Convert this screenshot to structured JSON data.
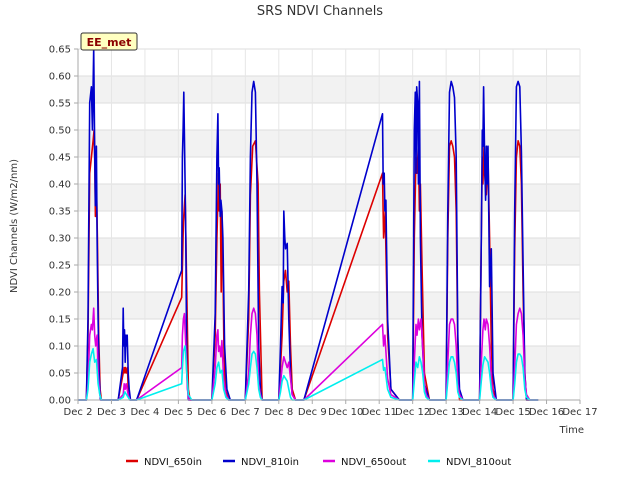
{
  "chart_data": {
    "type": "line",
    "title": "SRS NDVI Channels",
    "xlabel": "Time",
    "ylabel": "NDVI Channels (W/m2/nm)",
    "badge": "EE_met",
    "grid": true,
    "legend_position": "bottom",
    "xlim": [
      2,
      17
    ],
    "ylim": [
      0,
      0.65
    ],
    "x_ticks": [
      2,
      3,
      4,
      5,
      6,
      7,
      8,
      9,
      10,
      11,
      12,
      13,
      14,
      15,
      16,
      17
    ],
    "x_tick_labels": [
      "Dec 2",
      "Dec 3",
      "Dec 4",
      "Dec 5",
      "Dec 6",
      "Dec 7",
      "Dec 8",
      "Dec 9",
      "Dec 10",
      "Dec 11",
      "Dec 12",
      "Dec 13",
      "Dec 14",
      "Dec 15",
      "Dec 16",
      "Dec 17"
    ],
    "y_ticks": [
      0,
      0.05,
      0.1,
      0.15,
      0.2,
      0.25,
      0.3,
      0.35,
      0.4,
      0.45,
      0.5,
      0.55,
      0.6,
      0.65
    ],
    "y_tick_labels": [
      "0.00",
      "0.05",
      "0.10",
      "0.15",
      "0.20",
      "0.25",
      "0.30",
      "0.35",
      "0.40",
      "0.45",
      "0.50",
      "0.55",
      "0.60",
      "0.65"
    ],
    "series": [
      {
        "name": "NDVI_650in",
        "color": "#dd0000",
        "x": [
          2.0,
          2.25,
          2.3,
          2.35,
          2.4,
          2.45,
          2.48,
          2.5,
          2.52,
          2.55,
          2.58,
          2.62,
          2.66,
          2.7,
          2.75,
          2.8,
          3.0,
          3.2,
          3.35,
          3.38,
          3.4,
          3.42,
          3.45,
          3.48,
          3.5,
          3.55,
          3.6,
          3.7,
          3.75,
          5.1,
          5.15,
          5.2,
          5.25,
          5.3,
          5.35,
          5.4,
          5.5,
          6.0,
          6.1,
          6.15,
          6.2,
          6.22,
          6.25,
          6.28,
          6.3,
          6.33,
          6.36,
          6.4,
          6.5,
          7.0,
          7.1,
          7.15,
          7.22,
          7.3,
          7.38,
          7.42,
          7.5,
          8.0,
          8.1,
          8.15,
          8.2,
          8.25,
          8.3,
          8.35,
          8.4,
          8.5,
          8.75,
          11.1,
          11.13,
          11.18,
          11.2,
          11.25,
          11.35,
          11.6,
          12.0,
          12.05,
          12.1,
          12.13,
          12.17,
          12.2,
          12.23,
          12.28,
          12.35,
          12.5,
          13.0,
          13.05,
          13.1,
          13.15,
          13.2,
          13.25,
          13.3,
          13.35,
          13.4,
          13.5,
          14.0,
          14.05,
          14.08,
          14.1,
          14.13,
          14.15,
          14.2,
          14.25,
          14.3,
          14.35,
          14.4,
          14.5,
          15.0,
          15.05,
          15.1,
          15.15,
          15.2,
          15.25,
          15.3,
          15.35,
          15.4,
          15.5,
          15.75
        ],
        "values": [
          0,
          0,
          0.12,
          0.42,
          0.45,
          0.48,
          0.5,
          0.45,
          0.34,
          0.4,
          0.3,
          0.12,
          0.02,
          0,
          0,
          0,
          0,
          0,
          0.05,
          0.06,
          0.05,
          0.06,
          0.05,
          0.06,
          0.02,
          0,
          0,
          0,
          0,
          0.19,
          0.33,
          0.38,
          0.2,
          0.02,
          0,
          0,
          0,
          0,
          0.12,
          0.3,
          0.42,
          0.35,
          0.4,
          0.2,
          0.35,
          0.25,
          0.1,
          0.02,
          0,
          0,
          0.15,
          0.38,
          0.47,
          0.48,
          0.4,
          0.2,
          0,
          0,
          0.12,
          0.22,
          0.24,
          0.2,
          0.22,
          0.1,
          0.02,
          0,
          0,
          0.42,
          0.3,
          0.35,
          0.28,
          0.12,
          0.02,
          0,
          0,
          0.3,
          0.45,
          0.42,
          0.47,
          0.35,
          0.4,
          0.25,
          0.05,
          0,
          0,
          0.3,
          0.47,
          0.48,
          0.47,
          0.45,
          0.35,
          0.1,
          0,
          0,
          0,
          0.3,
          0.45,
          0.4,
          0.47,
          0.42,
          0.38,
          0.45,
          0.3,
          0.1,
          0.02,
          0,
          0,
          0.28,
          0.45,
          0.48,
          0.47,
          0.4,
          0.2,
          0.05,
          0,
          0,
          0
        ]
      },
      {
        "name": "NDVI_810in",
        "color": "#0000cc",
        "x": [
          2.0,
          2.25,
          2.3,
          2.35,
          2.4,
          2.43,
          2.47,
          2.5,
          2.52,
          2.55,
          2.57,
          2.6,
          2.63,
          2.67,
          2.72,
          2.8,
          3.0,
          3.2,
          3.33,
          3.35,
          3.37,
          3.39,
          3.41,
          3.43,
          3.45,
          3.47,
          3.5,
          3.53,
          3.57,
          3.65,
          3.75,
          5.1,
          5.12,
          5.14,
          5.16,
          5.2,
          5.22,
          5.25,
          5.3,
          5.35,
          5.4,
          5.5,
          6.0,
          6.1,
          6.15,
          6.18,
          6.2,
          6.22,
          6.25,
          6.27,
          6.3,
          6.33,
          6.38,
          6.45,
          6.55,
          7.0,
          7.1,
          7.15,
          7.2,
          7.25,
          7.3,
          7.35,
          7.4,
          7.45,
          7.5,
          8.0,
          8.05,
          8.1,
          8.13,
          8.15,
          8.18,
          8.2,
          8.25,
          8.3,
          8.35,
          8.4,
          8.5,
          8.75,
          11.1,
          11.12,
          11.15,
          11.17,
          11.2,
          11.25,
          11.35,
          11.6,
          12.0,
          12.05,
          12.08,
          12.1,
          12.12,
          12.15,
          12.17,
          12.2,
          12.23,
          12.28,
          12.35,
          12.5,
          13.0,
          13.05,
          13.1,
          13.15,
          13.2,
          13.25,
          13.3,
          13.35,
          13.4,
          13.5,
          14.0,
          14.05,
          14.08,
          14.1,
          14.12,
          14.15,
          14.18,
          14.2,
          14.22,
          14.25,
          14.3,
          14.35,
          14.4,
          14.5,
          15.0,
          15.05,
          15.1,
          15.15,
          15.2,
          15.25,
          15.3,
          15.35,
          15.4,
          15.5,
          15.75
        ],
        "values": [
          0,
          0,
          0.15,
          0.55,
          0.58,
          0.5,
          0.65,
          0.46,
          0.36,
          0.47,
          0.3,
          0.15,
          0.05,
          0,
          0,
          0,
          0,
          0,
          0.06,
          0.17,
          0.1,
          0.13,
          0.07,
          0.12,
          0.1,
          0.12,
          0.05,
          0.02,
          0,
          0,
          0,
          0.24,
          0.45,
          0.5,
          0.57,
          0.4,
          0.3,
          0.05,
          0,
          0,
          0,
          0,
          0,
          0.16,
          0.45,
          0.53,
          0.4,
          0.43,
          0.34,
          0.37,
          0.35,
          0.3,
          0.1,
          0.02,
          0,
          0,
          0.2,
          0.45,
          0.57,
          0.59,
          0.57,
          0.4,
          0.1,
          0.02,
          0,
          0,
          0.1,
          0.21,
          0.18,
          0.35,
          0.3,
          0.28,
          0.29,
          0.15,
          0.05,
          0.01,
          0,
          0,
          0.53,
          0.4,
          0.42,
          0.35,
          0.37,
          0.15,
          0.02,
          0,
          0,
          0.5,
          0.57,
          0.42,
          0.58,
          0.55,
          0.4,
          0.59,
          0.3,
          0.12,
          0.03,
          0,
          0,
          0.35,
          0.57,
          0.59,
          0.58,
          0.56,
          0.45,
          0.12,
          0.02,
          0,
          0,
          0.3,
          0.5,
          0.47,
          0.58,
          0.45,
          0.37,
          0.47,
          0.4,
          0.47,
          0.21,
          0.28,
          0.05,
          0,
          0,
          0.35,
          0.58,
          0.59,
          0.58,
          0.46,
          0.25,
          0.05,
          0,
          0,
          0
        ]
      },
      {
        "name": "NDVI_650out",
        "color": "#dd00dd",
        "x": [
          2.0,
          2.25,
          2.3,
          2.35,
          2.4,
          2.43,
          2.47,
          2.5,
          2.53,
          2.57,
          2.6,
          2.65,
          2.7,
          2.8,
          3.0,
          3.2,
          3.35,
          3.38,
          3.41,
          3.44,
          3.47,
          3.5,
          3.55,
          3.65,
          3.75,
          5.1,
          5.12,
          5.15,
          5.18,
          5.22,
          5.27,
          5.32,
          5.4,
          5.5,
          6.0,
          6.1,
          6.15,
          6.18,
          6.2,
          6.23,
          6.27,
          6.3,
          6.35,
          6.42,
          6.5,
          7.0,
          7.1,
          7.15,
          7.2,
          7.25,
          7.3,
          7.35,
          7.4,
          7.45,
          7.5,
          8.0,
          8.05,
          8.1,
          8.15,
          8.2,
          8.25,
          8.3,
          8.35,
          8.4,
          8.5,
          8.75,
          11.1,
          11.13,
          11.17,
          11.2,
          11.25,
          11.35,
          11.6,
          12.0,
          12.05,
          12.1,
          12.13,
          12.17,
          12.2,
          12.25,
          12.3,
          12.35,
          12.4,
          12.5,
          13.0,
          13.05,
          13.1,
          13.15,
          13.2,
          13.25,
          13.3,
          13.35,
          13.4,
          13.5,
          14.0,
          14.05,
          14.1,
          14.13,
          14.17,
          14.2,
          14.25,
          14.3,
          14.35,
          14.4,
          14.5,
          15.0,
          15.05,
          15.1,
          15.15,
          15.2,
          15.25,
          15.3,
          15.35,
          15.4,
          15.5,
          15.75
        ],
        "values": [
          0,
          0,
          0.03,
          0.12,
          0.14,
          0.13,
          0.17,
          0.12,
          0.1,
          0.12,
          0.05,
          0.01,
          0,
          0,
          0,
          0,
          0.01,
          0.03,
          0.02,
          0.03,
          0.02,
          0.01,
          0,
          0,
          0,
          0.06,
          0.12,
          0.15,
          0.16,
          0.1,
          0.02,
          0,
          0,
          0,
          0,
          0.06,
          0.12,
          0.13,
          0.09,
          0.1,
          0.08,
          0.11,
          0.04,
          0.01,
          0,
          0,
          0.05,
          0.12,
          0.16,
          0.17,
          0.16,
          0.12,
          0.03,
          0.01,
          0,
          0,
          0.03,
          0.06,
          0.08,
          0.07,
          0.06,
          0.07,
          0.04,
          0.01,
          0,
          0,
          0.14,
          0.1,
          0.12,
          0.09,
          0.04,
          0.01,
          0,
          0,
          0.07,
          0.14,
          0.12,
          0.15,
          0.13,
          0.15,
          0.1,
          0.03,
          0.01,
          0,
          0,
          0.07,
          0.14,
          0.15,
          0.15,
          0.14,
          0.1,
          0.03,
          0.01,
          0,
          0,
          0.07,
          0.13,
          0.15,
          0.13,
          0.15,
          0.14,
          0.1,
          0.04,
          0.01,
          0,
          0,
          0.06,
          0.14,
          0.16,
          0.17,
          0.16,
          0.12,
          0.04,
          0.01,
          0,
          0
        ]
      },
      {
        "name": "NDVI_810out",
        "color": "#00eeee",
        "x": [
          2.0,
          2.25,
          2.3,
          2.35,
          2.4,
          2.45,
          2.5,
          2.55,
          2.6,
          2.65,
          2.7,
          2.8,
          3.0,
          3.2,
          3.35,
          3.4,
          3.45,
          3.5,
          3.55,
          3.65,
          3.75,
          5.1,
          5.12,
          5.15,
          5.2,
          5.25,
          5.3,
          5.4,
          5.5,
          6.0,
          6.1,
          6.15,
          6.2,
          6.25,
          6.3,
          6.35,
          6.42,
          6.5,
          7.0,
          7.1,
          7.15,
          7.2,
          7.25,
          7.3,
          7.35,
          7.4,
          7.45,
          7.5,
          8.0,
          8.05,
          8.1,
          8.15,
          8.2,
          8.25,
          8.3,
          8.35,
          8.4,
          8.5,
          8.75,
          11.1,
          11.13,
          11.17,
          11.2,
          11.25,
          11.35,
          11.6,
          12.0,
          12.05,
          12.1,
          12.15,
          12.2,
          12.25,
          12.3,
          12.35,
          12.4,
          12.5,
          13.0,
          13.05,
          13.1,
          13.15,
          13.2,
          13.25,
          13.3,
          13.35,
          13.4,
          13.5,
          14.0,
          14.05,
          14.1,
          14.15,
          14.2,
          14.25,
          14.3,
          14.35,
          14.4,
          14.5,
          15.0,
          15.05,
          15.1,
          15.15,
          15.2,
          15.25,
          15.3,
          15.35,
          15.4,
          15.5,
          15.75
        ],
        "values": [
          0,
          0,
          0.02,
          0.07,
          0.085,
          0.095,
          0.07,
          0.075,
          0.03,
          0.01,
          0,
          0,
          0,
          0,
          0.005,
          0.015,
          0.01,
          0.005,
          0,
          0,
          0,
          0.03,
          0.06,
          0.09,
          0.1,
          0.05,
          0.01,
          0,
          0,
          0,
          0.03,
          0.06,
          0.07,
          0.05,
          0.055,
          0.02,
          0.005,
          0,
          0,
          0.03,
          0.06,
          0.085,
          0.09,
          0.085,
          0.06,
          0.02,
          0.005,
          0,
          0,
          0.015,
          0.035,
          0.045,
          0.04,
          0.035,
          0.02,
          0.005,
          0,
          0,
          0,
          0.075,
          0.055,
          0.06,
          0.045,
          0.02,
          0.005,
          0,
          0,
          0.035,
          0.07,
          0.06,
          0.08,
          0.07,
          0.05,
          0.015,
          0.005,
          0,
          0,
          0.035,
          0.07,
          0.08,
          0.08,
          0.07,
          0.05,
          0.015,
          0.005,
          0,
          0,
          0.035,
          0.065,
          0.08,
          0.075,
          0.07,
          0.05,
          0.02,
          0.005,
          0,
          0,
          0.03,
          0.07,
          0.085,
          0.085,
          0.08,
          0.06,
          0.02,
          0.005,
          0,
          0
        ]
      }
    ]
  }
}
